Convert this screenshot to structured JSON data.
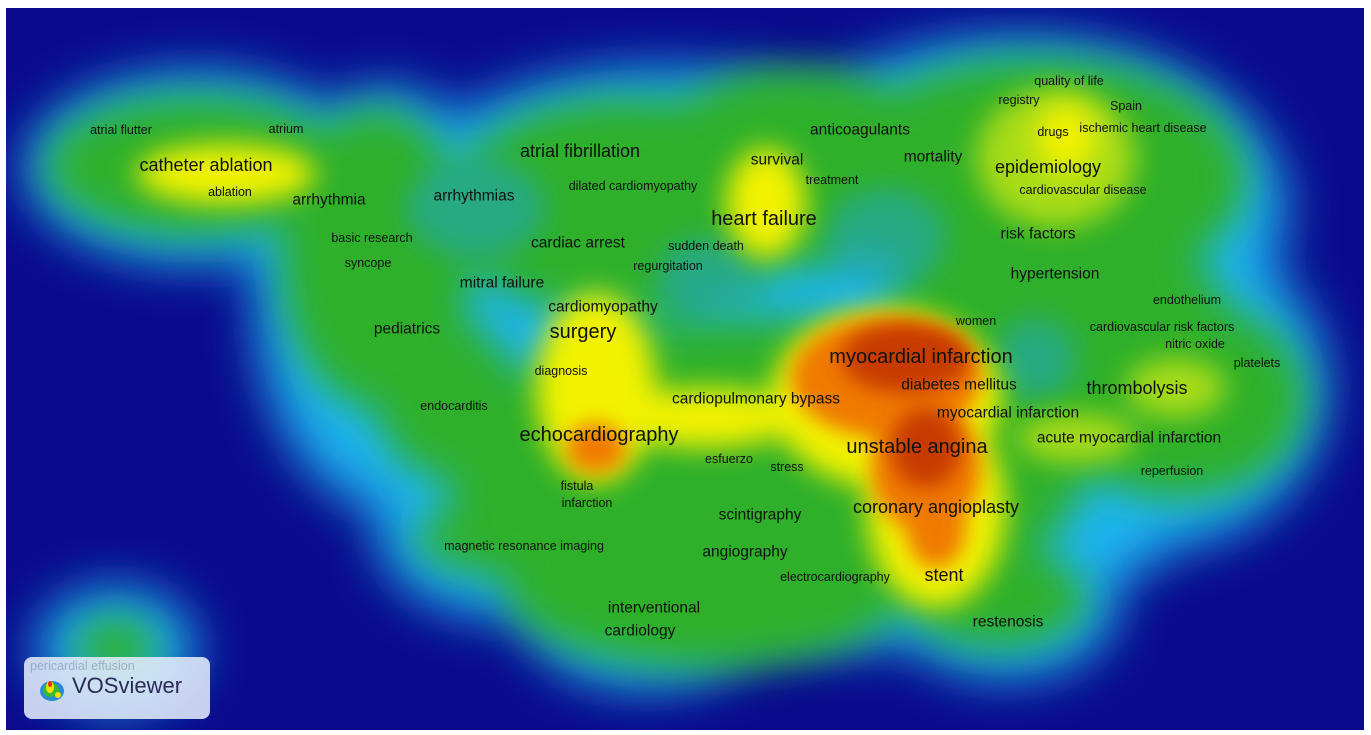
{
  "app": {
    "name": "VOSviewer",
    "view": "density visualization"
  },
  "colors": {
    "background": "#0a0a8c",
    "low": "#00c8e8",
    "mid": "#22b02a",
    "high": "#f2f200",
    "peak": "#d24a00"
  },
  "logo": {
    "text": "VOSviewer",
    "hidden_label": "pericardial effusion",
    "icon": "vosviewer-logo-icon"
  },
  "terms": [
    {
      "label": "atrial flutter"
    },
    {
      "label": "atrium"
    },
    {
      "label": "catheter ablation"
    },
    {
      "label": "ablation"
    },
    {
      "label": "arrhythmia"
    },
    {
      "label": "arrhythmias"
    },
    {
      "label": "atrial fibrillation"
    },
    {
      "label": "dilated cardiomyopathy"
    },
    {
      "label": "anticoagulants"
    },
    {
      "label": "survival"
    },
    {
      "label": "treatment"
    },
    {
      "label": "mortality"
    },
    {
      "label": "quality of life"
    },
    {
      "label": "registry"
    },
    {
      "label": "Spain"
    },
    {
      "label": "drugs"
    },
    {
      "label": "ischemic heart disease"
    },
    {
      "label": "epidemiology"
    },
    {
      "label": "cardiovascular disease"
    },
    {
      "label": "heart failure"
    },
    {
      "label": "basic research"
    },
    {
      "label": "syncope"
    },
    {
      "label": "cardiac arrest"
    },
    {
      "label": "sudden death"
    },
    {
      "label": "regurgitation"
    },
    {
      "label": "risk factors"
    },
    {
      "label": "hypertension"
    },
    {
      "label": "mitral failure"
    },
    {
      "label": "cardiomyopathy"
    },
    {
      "label": "endothelium"
    },
    {
      "label": "women"
    },
    {
      "label": "cardiovascular risk factors"
    },
    {
      "label": "nitric oxide"
    },
    {
      "label": "platelets"
    },
    {
      "label": "pediatrics"
    },
    {
      "label": "surgery"
    },
    {
      "label": "myocardial infarction"
    },
    {
      "label": "diagnosis"
    },
    {
      "label": "diabetes mellitus"
    },
    {
      "label": "thrombolysis"
    },
    {
      "label": "endocarditis"
    },
    {
      "label": "cardiopulmonary bypass"
    },
    {
      "label": "myocardial infarction"
    },
    {
      "label": "echocardiography"
    },
    {
      "label": "unstable angina"
    },
    {
      "label": "acute myocardial infarction"
    },
    {
      "label": "esfuerzo"
    },
    {
      "label": "stress"
    },
    {
      "label": "reperfusion"
    },
    {
      "label": "fistula"
    },
    {
      "label": "infarction"
    },
    {
      "label": "coronary angioplasty"
    },
    {
      "label": "scintigraphy"
    },
    {
      "label": "magnetic resonance imaging"
    },
    {
      "label": "angiography"
    },
    {
      "label": "electrocardiography"
    },
    {
      "label": "stent"
    },
    {
      "label": "interventional"
    },
    {
      "label": "cardiology"
    },
    {
      "label": "restenosis"
    }
  ]
}
